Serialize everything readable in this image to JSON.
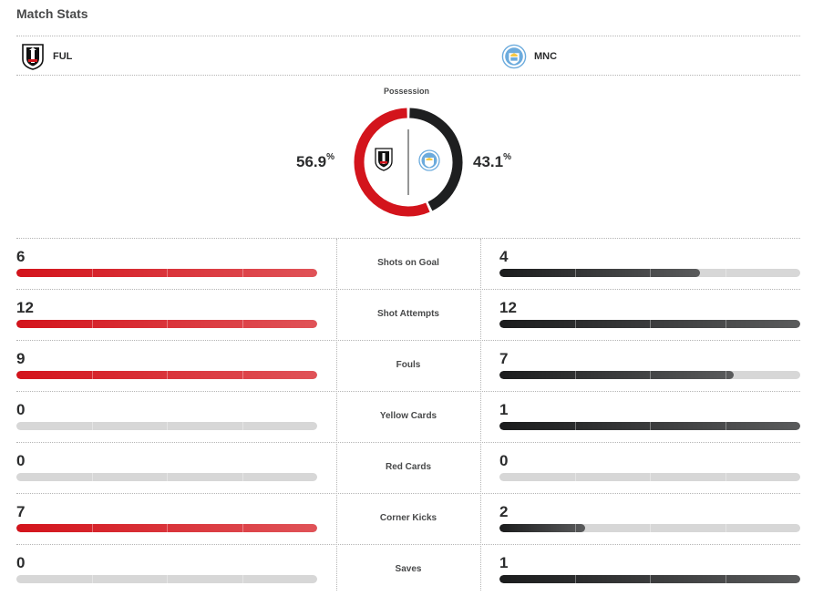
{
  "title": "Match Stats",
  "home": {
    "abbr": "FUL",
    "crest": "fulham-crest-icon",
    "color": "#d3141c"
  },
  "away": {
    "abbr": "MNC",
    "crest": "man-city-crest-icon",
    "color": "#2b2c2d"
  },
  "possession": {
    "label": "Possession",
    "home_pct": "56.9",
    "away_pct": "43.1",
    "unit": "%"
  },
  "stats": [
    {
      "label": "Shots on Goal",
      "home": "6",
      "away": "4",
      "home_fill": 1.0,
      "away_fill": 0.667
    },
    {
      "label": "Shot Attempts",
      "home": "12",
      "away": "12",
      "home_fill": 1.0,
      "away_fill": 1.0
    },
    {
      "label": "Fouls",
      "home": "9",
      "away": "7",
      "home_fill": 1.0,
      "away_fill": 0.778
    },
    {
      "label": "Yellow Cards",
      "home": "0",
      "away": "1",
      "home_fill": 0.0,
      "away_fill": 1.0
    },
    {
      "label": "Red Cards",
      "home": "0",
      "away": "0",
      "home_fill": 0.0,
      "away_fill": 0.0
    },
    {
      "label": "Corner Kicks",
      "home": "7",
      "away": "2",
      "home_fill": 1.0,
      "away_fill": 0.286
    },
    {
      "label": "Saves",
      "home": "0",
      "away": "1",
      "home_fill": 0.0,
      "away_fill": 1.0
    }
  ]
}
